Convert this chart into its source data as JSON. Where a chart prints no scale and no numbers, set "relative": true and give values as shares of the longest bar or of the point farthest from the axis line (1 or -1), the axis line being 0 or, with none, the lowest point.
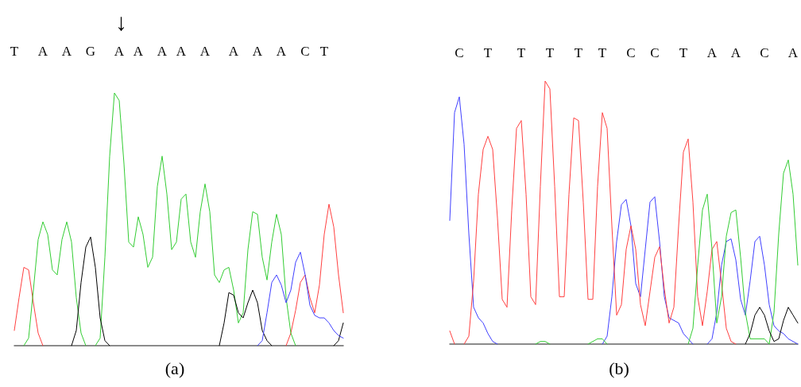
{
  "chart_data": [
    {
      "type": "line",
      "title": "(a)",
      "annotations": [
        "↓"
      ],
      "relative": true,
      "line_style": "solid",
      "categories": [
        "T",
        null,
        null,
        null,
        null,
        null,
        "A",
        null,
        null,
        null,
        null,
        "A",
        null,
        null,
        null,
        null,
        "G",
        null,
        null,
        null,
        null,
        null,
        "A",
        null,
        null,
        null,
        "A",
        null,
        null,
        null,
        null,
        "A",
        null,
        null,
        null,
        "A",
        null,
        null,
        null,
        null,
        "A",
        null,
        null,
        null,
        null,
        null,
        "A",
        null,
        null,
        null,
        null,
        "A",
        null,
        null,
        null,
        null,
        "A",
        null,
        null,
        null,
        null,
        "C",
        null,
        null,
        null,
        "T",
        null,
        null,
        null,
        null
      ],
      "series": [
        {
          "color": "#ff4040",
          "values": [
            0.06,
            0.19,
            0.31,
            0.3,
            0.17,
            0.05,
            0,
            null,
            null,
            null,
            null,
            null,
            null,
            null,
            null,
            null,
            null,
            null,
            null,
            null,
            null,
            null,
            null,
            null,
            null,
            null,
            null,
            null,
            null,
            null,
            null,
            null,
            null,
            null,
            null,
            null,
            null,
            null,
            null,
            null,
            null,
            null,
            null,
            null,
            null,
            null,
            null,
            null,
            null,
            null,
            null,
            null,
            null,
            null,
            null,
            null,
            null,
            0,
            0.05,
            0.14,
            0.25,
            0.28,
            0.19,
            0.13,
            0.24,
            0.44,
            0.56,
            0.47,
            0.28,
            0.13
          ]
        },
        {
          "color": "#33cc33",
          "values": [
            null,
            null,
            0,
            0.03,
            0.22,
            0.42,
            0.49,
            0.44,
            0.3,
            0.28,
            0.42,
            0.49,
            0.41,
            0.19,
            0.05,
            0,
            null,
            0,
            0.03,
            0.35,
            0.75,
            1,
            0.97,
            0.72,
            0.41,
            0.39,
            0.51,
            0.44,
            0.31,
            0.35,
            0.63,
            0.75,
            0.6,
            0.38,
            0.41,
            0.58,
            0.6,
            0.41,
            0.35,
            0.53,
            0.64,
            0.53,
            0.28,
            0.25,
            0.3,
            0.31,
            0.22,
            0.09,
            0.13,
            0.38,
            0.53,
            0.52,
            0.35,
            0.26,
            0.41,
            0.52,
            0.44,
            0.19,
            0.05,
            0,
            null,
            null,
            null,
            null,
            null,
            null,
            null,
            null,
            null,
            null
          ]
        },
        {
          "color": "#000000",
          "values": [
            null,
            null,
            null,
            null,
            null,
            null,
            null,
            null,
            null,
            null,
            null,
            null,
            0,
            0.06,
            0.25,
            0.39,
            0.43,
            0.31,
            0.11,
            0.02,
            0,
            null,
            null,
            null,
            null,
            null,
            null,
            null,
            null,
            null,
            null,
            null,
            null,
            null,
            null,
            null,
            null,
            null,
            null,
            null,
            null,
            null,
            null,
            0,
            0.09,
            0.21,
            0.2,
            0.13,
            0.11,
            0.17,
            0.22,
            0.17,
            0.06,
            0.02,
            0,
            null,
            null,
            null,
            null,
            null,
            null,
            null,
            null,
            null,
            null,
            null,
            null,
            0,
            0.02,
            0.09
          ]
        },
        {
          "color": "#4040ff",
          "values": [
            null,
            null,
            null,
            null,
            null,
            null,
            null,
            null,
            null,
            null,
            null,
            null,
            null,
            null,
            null,
            null,
            null,
            null,
            null,
            null,
            null,
            null,
            null,
            null,
            null,
            null,
            null,
            null,
            null,
            null,
            null,
            null,
            null,
            null,
            null,
            null,
            null,
            null,
            null,
            null,
            null,
            null,
            null,
            null,
            null,
            null,
            null,
            null,
            null,
            null,
            null,
            0,
            0.02,
            0.13,
            0.25,
            0.28,
            0.24,
            0.17,
            0.22,
            0.33,
            0.37,
            0.28,
            0.16,
            0.12,
            0.11,
            0.11,
            0.09,
            0.06,
            0.04,
            0.03
          ]
        }
      ]
    },
    {
      "type": "line",
      "title": "(b)",
      "relative": true,
      "line_style": "solid",
      "categories": [
        null,
        null,
        "C",
        null,
        null,
        null,
        null,
        null,
        "T",
        null,
        null,
        null,
        null,
        null,
        null,
        "T",
        null,
        null,
        null,
        null,
        null,
        "T",
        null,
        null,
        null,
        null,
        null,
        "T",
        null,
        null,
        null,
        null,
        "T",
        null,
        null,
        null,
        null,
        null,
        "C",
        null,
        null,
        null,
        null,
        "C",
        null,
        null,
        null,
        null,
        null,
        "T",
        null,
        null,
        null,
        null,
        null,
        "A",
        null,
        null,
        null,
        null,
        "A",
        null,
        null,
        null,
        null,
        null,
        "C",
        null,
        null,
        null,
        null,
        null,
        "A",
        null
      ],
      "series": [
        {
          "color": "#4040ff",
          "values": [
            0.47,
            0.88,
            0.94,
            0.76,
            0.42,
            0.14,
            0.1,
            0.08,
            0.04,
            0.01,
            0,
            null,
            null,
            null,
            null,
            null,
            null,
            null,
            null,
            null,
            null,
            null,
            null,
            null,
            null,
            null,
            null,
            null,
            null,
            null,
            null,
            null,
            0,
            0.03,
            0.18,
            0.39,
            0.53,
            0.55,
            0.45,
            0.23,
            0.18,
            0.36,
            0.54,
            0.56,
            0.39,
            0.18,
            0.1,
            0.09,
            0.08,
            0.04,
            0.02,
            0,
            null,
            null,
            0,
            0.02,
            0.12,
            0.3,
            0.39,
            0.4,
            0.32,
            0.17,
            0.11,
            0.24,
            0.39,
            0.41,
            0.3,
            0.15,
            0.07,
            0.05,
            0.04,
            0.02,
            0.01,
            0
          ]
        },
        {
          "color": "#ff4040",
          "values": [
            0.05,
            0,
            null,
            0,
            0.03,
            0.24,
            0.57,
            0.74,
            0.79,
            0.74,
            0.48,
            0.17,
            0.14,
            0.51,
            0.82,
            0.85,
            0.57,
            0.18,
            0.15,
            0.6,
            1,
            0.97,
            0.6,
            0.18,
            0.18,
            0.57,
            0.86,
            0.85,
            0.54,
            0.17,
            0.17,
            0.6,
            0.88,
            0.82,
            0.45,
            0.11,
            0.15,
            0.36,
            0.45,
            0.36,
            0.15,
            0.07,
            0.2,
            0.33,
            0.37,
            0.21,
            0.08,
            0.14,
            0.45,
            0.73,
            0.78,
            0.54,
            0.18,
            0.07,
            0.2,
            0.36,
            0.39,
            0.23,
            0.06,
            0.01,
            0,
            null,
            null,
            null,
            null,
            null,
            null,
            null,
            null,
            null,
            null,
            null,
            null,
            null
          ]
        },
        {
          "color": "#33cc33",
          "values": [
            null,
            null,
            null,
            null,
            null,
            null,
            null,
            null,
            null,
            null,
            null,
            null,
            null,
            null,
            null,
            null,
            null,
            null,
            0,
            0.01,
            0.01,
            0,
            null,
            null,
            null,
            null,
            null,
            null,
            null,
            0,
            0.01,
            0.02,
            0.02,
            0,
            null,
            null,
            null,
            null,
            null,
            null,
            null,
            null,
            null,
            null,
            null,
            null,
            null,
            null,
            null,
            null,
            0,
            0.06,
            0.3,
            0.51,
            0.57,
            0.36,
            0.08,
            0.18,
            0.41,
            0.5,
            0.51,
            0.33,
            0.12,
            0.02,
            0.02,
            0.02,
            0.02,
            0,
            0.12,
            0.42,
            0.65,
            0.7,
            0.57,
            0.3
          ]
        },
        {
          "color": "#000000",
          "values": [
            null,
            null,
            null,
            null,
            null,
            null,
            null,
            null,
            null,
            null,
            null,
            null,
            null,
            null,
            null,
            null,
            null,
            null,
            null,
            null,
            null,
            null,
            null,
            null,
            null,
            null,
            null,
            null,
            null,
            null,
            null,
            null,
            null,
            null,
            null,
            null,
            null,
            null,
            null,
            null,
            null,
            null,
            null,
            null,
            null,
            null,
            null,
            null,
            null,
            null,
            null,
            null,
            null,
            null,
            null,
            null,
            null,
            null,
            null,
            null,
            null,
            null,
            0,
            0.04,
            0.11,
            0.14,
            0.11,
            0.05,
            0.01,
            0.02,
            0.09,
            0.14,
            0.11,
            0.08
          ]
        }
      ]
    }
  ]
}
